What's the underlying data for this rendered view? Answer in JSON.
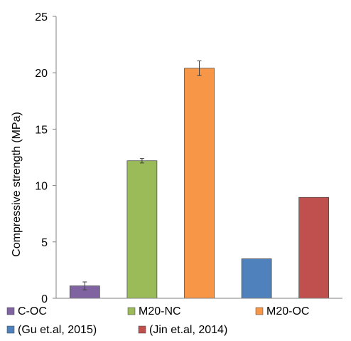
{
  "chart_data": {
    "type": "bar",
    "title": "",
    "xlabel": "",
    "ylabel": "Compressive strength (MPa)",
    "ylim": [
      0,
      25
    ],
    "yticks": [
      0,
      5,
      10,
      15,
      20,
      25
    ],
    "grid": false,
    "legend_position": "bottom",
    "series": [
      {
        "name": "C-OC",
        "value": 1.1,
        "error": 0.35,
        "color": "#8064A2"
      },
      {
        "name": "M20-NC",
        "value": 12.2,
        "error": 0.2,
        "color": "#9BBB59"
      },
      {
        "name": "M20-OC",
        "value": 20.4,
        "error": 0.65,
        "color": "#F79646"
      },
      {
        "name": "(Gu et.al, 2015)",
        "value": 3.5,
        "error": null,
        "color": "#4F81BD"
      },
      {
        "name": "(Jin et.al, 2014)",
        "value": 8.95,
        "error": null,
        "color": "#C0504D"
      }
    ]
  }
}
